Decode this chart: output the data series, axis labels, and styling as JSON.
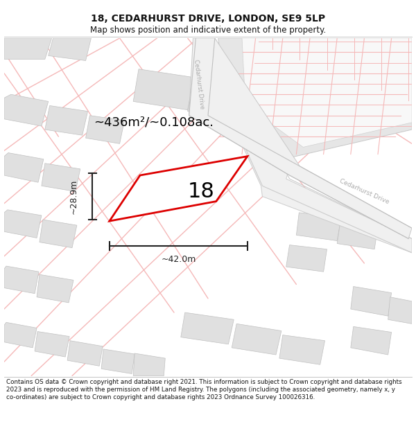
{
  "title": "18, CEDARHURST DRIVE, LONDON, SE9 5LP",
  "subtitle": "Map shows position and indicative extent of the property.",
  "footer": "Contains OS data © Crown copyright and database right 2021. This information is subject to Crown copyright and database rights 2023 and is reproduced with the permission of HM Land Registry. The polygons (including the associated geometry, namely x, y co-ordinates) are subject to Crown copyright and database rights 2023 Ordnance Survey 100026316.",
  "area_label": "~436m²/~0.108ac.",
  "property_number": "18",
  "dim_width": "~42.0m",
  "dim_height": "~28.9m",
  "street_label_top": "Cedarhurst Drive",
  "street_label_right": "Cedarhurst Drive",
  "title_fontsize": 10,
  "subtitle_fontsize": 8.5,
  "footer_fontsize": 6.3,
  "map_bg": "#ffffff",
  "building_fill": "#e0e0e0",
  "building_edge": "#c0c0c0",
  "road_fill": "#eeeeee",
  "road_edge": "#d0d0d0",
  "pink_road_color": "#f5b8b8",
  "red_line_color": "#dd0000",
  "street_label_color": "#aaaaaa",
  "dim_color": "#222222"
}
